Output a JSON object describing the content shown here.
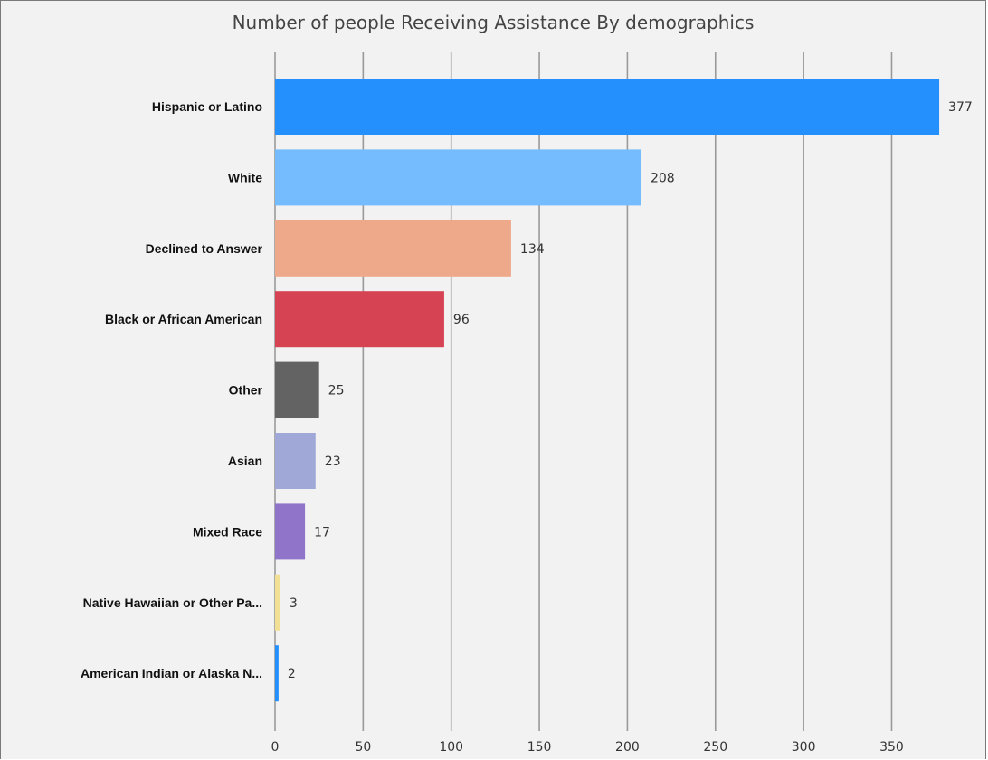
{
  "chart_data": {
    "type": "bar",
    "orientation": "horizontal",
    "title": "Number of people Receiving Assistance By demographics",
    "xlabel": "",
    "ylabel": "",
    "xlim": [
      0,
      378
    ],
    "xticks": [
      0,
      50,
      100,
      150,
      200,
      250,
      300,
      350
    ],
    "grid": true,
    "categories": [
      "Hispanic or Latino",
      "White",
      "Declined to Answer",
      "Black or African American",
      "Other",
      "Asian",
      "Mixed Race",
      "Native Hawaiian or Other Pa...",
      "American Indian or Alaska N..."
    ],
    "values": [
      377,
      208,
      134,
      96,
      25,
      23,
      17,
      3,
      2
    ],
    "colors": [
      "#2490fe",
      "#74bcfe",
      "#eea88a",
      "#d64353",
      "#636363",
      "#a0a8d8",
      "#8f74ca",
      "#f2e095",
      "#2490fe"
    ],
    "grid_color": "#9a9a9a"
  }
}
